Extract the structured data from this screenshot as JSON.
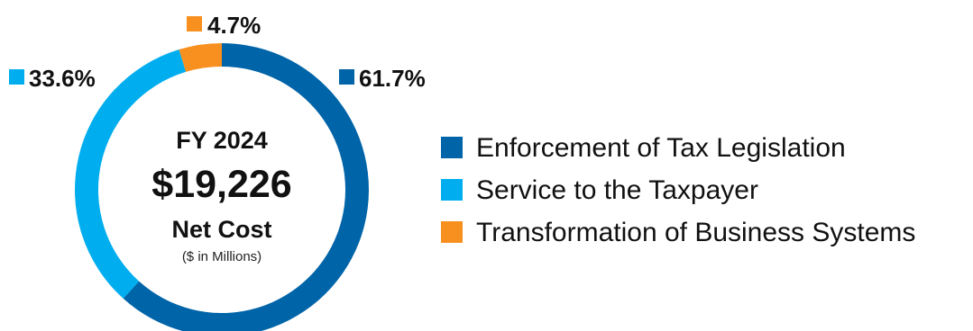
{
  "chart_data": {
    "type": "pie",
    "style": "donut",
    "categories": [
      "Enforcement of Tax Legislation",
      "Service to the Taxpayer",
      "Transformation of Business Systems"
    ],
    "values": [
      61.7,
      33.6,
      4.7
    ],
    "value_labels": [
      "61.7%",
      "33.6%",
      "4.7%"
    ],
    "colors": [
      "#0064a8",
      "#00aeef",
      "#f7901e"
    ],
    "center": {
      "title": "FY 2024",
      "value": "$19,226",
      "label": "Net Cost",
      "note": "($ in Millions)"
    },
    "legend": {
      "position": "right"
    }
  }
}
